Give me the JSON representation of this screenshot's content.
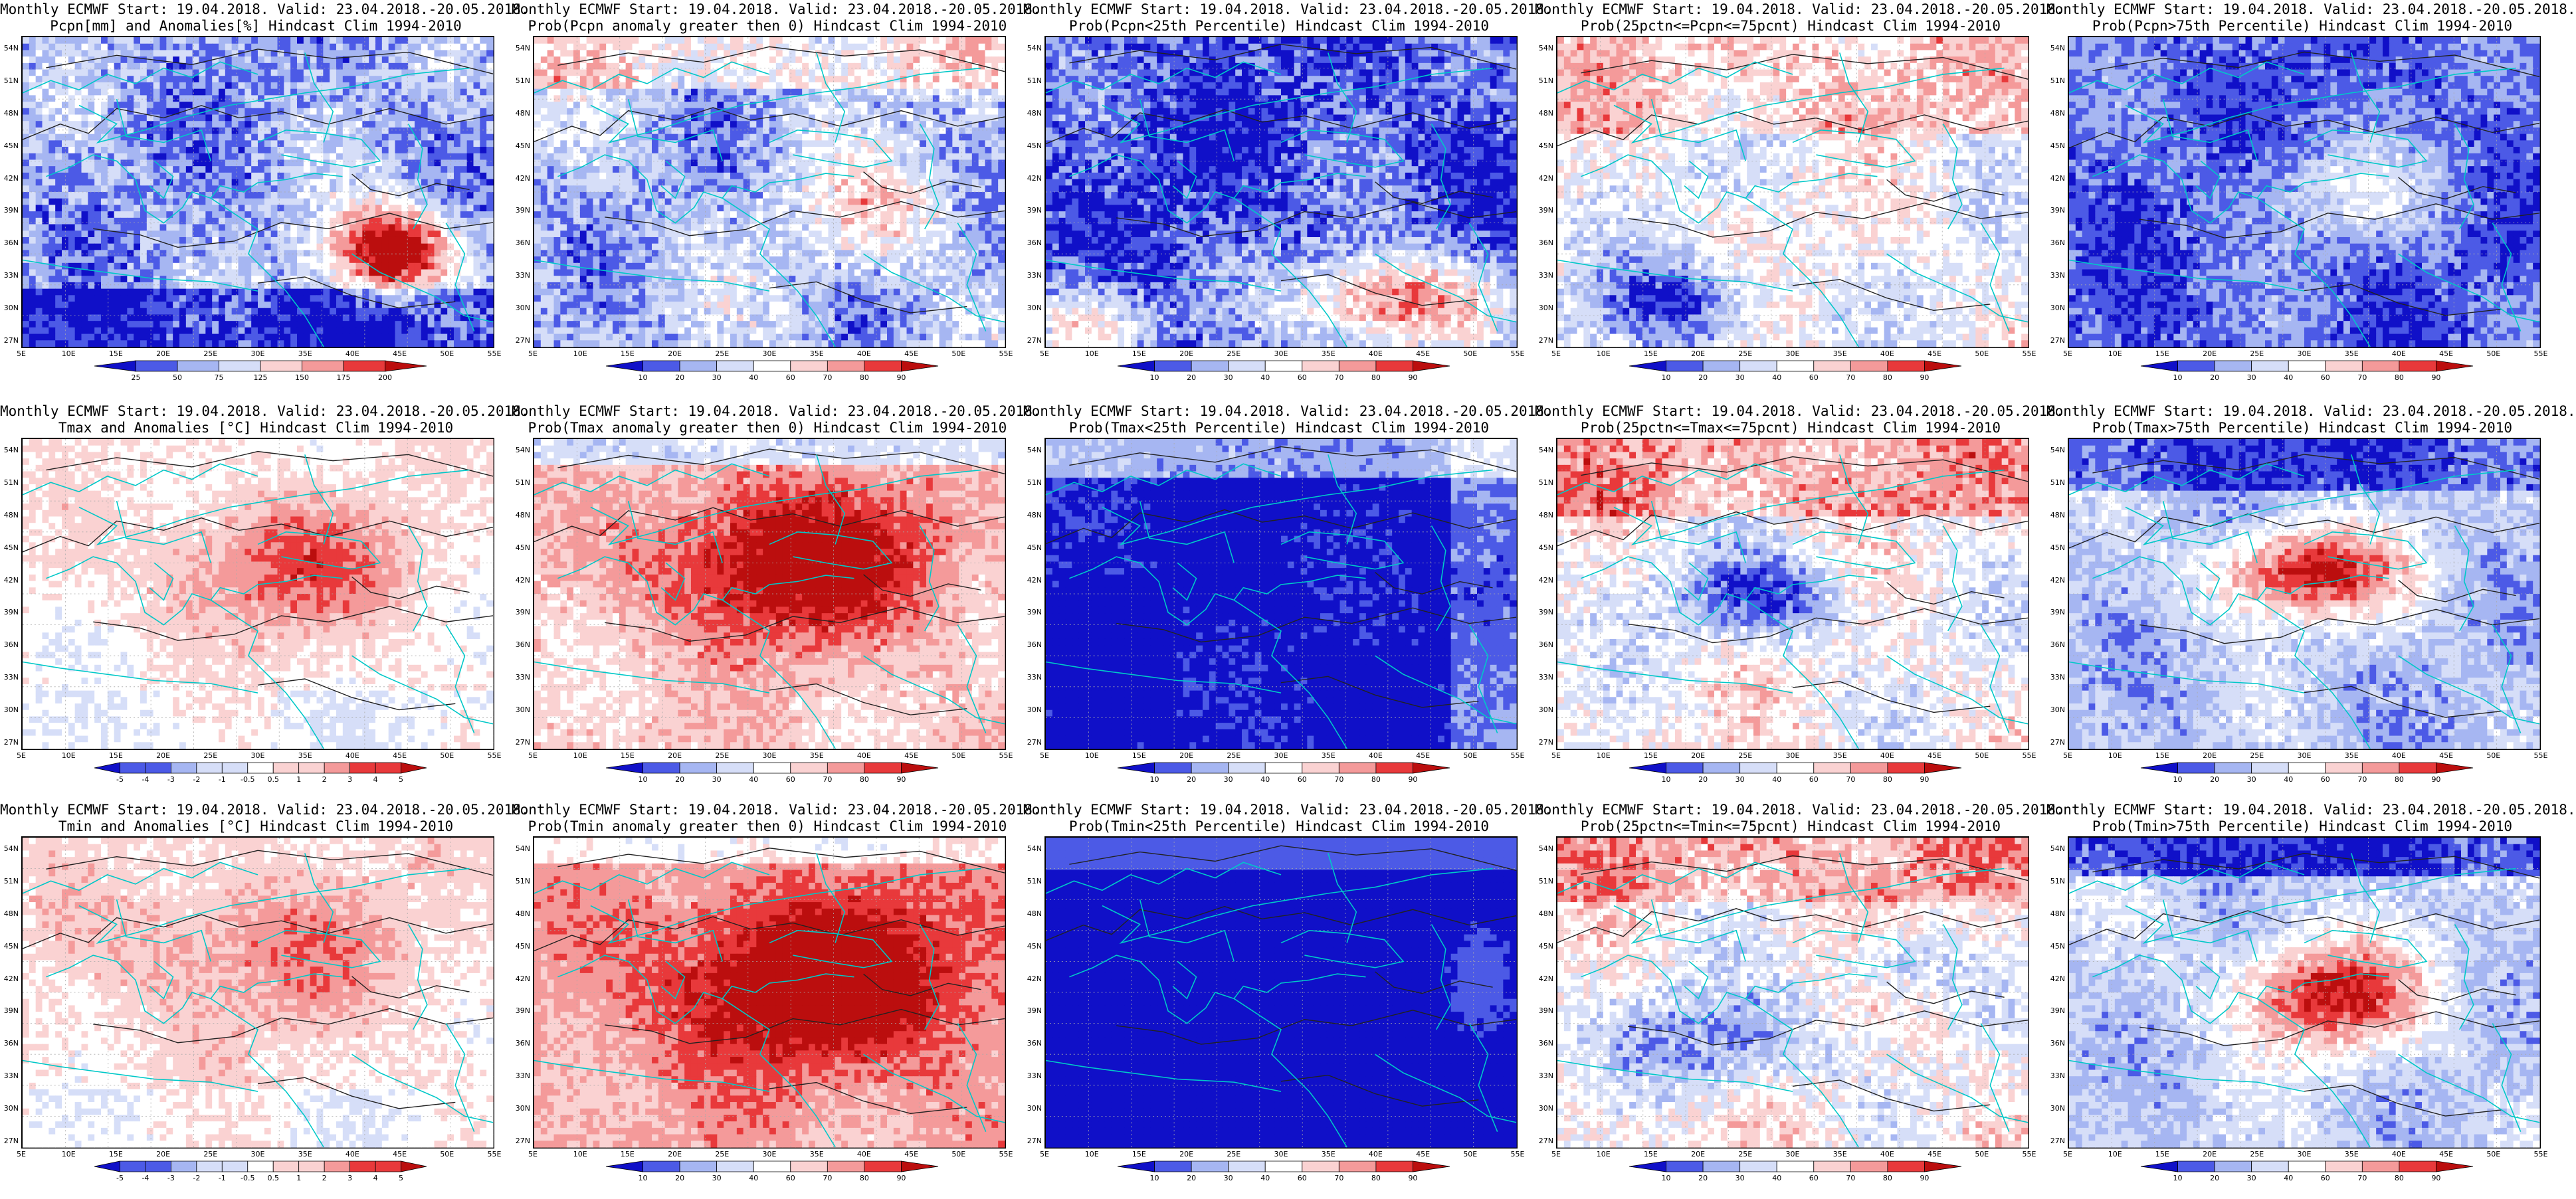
{
  "common": {
    "lat_labels": [
      "54N",
      "51N",
      "48N",
      "45N",
      "42N",
      "39N",
      "36N",
      "33N",
      "30N",
      "27N"
    ],
    "lon_labels": [
      "5E",
      "10E",
      "15E",
      "20E",
      "25E",
      "30E",
      "35E",
      "40E",
      "45E",
      "50E",
      "55E"
    ]
  },
  "colors": {
    "deep_blue": "#1010c8",
    "mid_blue": "#4c5ae6",
    "light_blue": "#a6b6f2",
    "pale_blue": "#d6def8",
    "white": "#ffffff",
    "pale_red": "#fad2d2",
    "light_red": "#f49a9a",
    "mid_red": "#e8393b",
    "deep_red": "#bb0e0e",
    "coast": "#00c8c8",
    "contour": "#222222"
  },
  "colorbars": {
    "anom_pcp": [
      "25",
      "50",
      "75",
      "125",
      "150",
      "175",
      "200"
    ],
    "anom_t": [
      "-5",
      "-4",
      "-3",
      "-2",
      "-1",
      "-0.5",
      "0.5",
      "1",
      "2",
      "3",
      "4",
      "5"
    ],
    "prob": [
      "10",
      "20",
      "30",
      "40",
      "60",
      "70",
      "80",
      "90"
    ]
  },
  "panels": [
    {
      "line1": "Monthly ECMWF Start: 19.04.2018. Valid: 23.04.2018.-20.05.2018.",
      "line2": "Pcpn[mm] and Anomalies[%] Hindcast Clim 1994-2010",
      "field": "pcp_anom",
      "colorbar": "anom_pcp"
    },
    {
      "line1": "Monthly ECMWF Start: 19.04.2018. Valid: 23.04.2018.-20.05.2018.",
      "line2": "Prob(Pcpn anomaly greater then 0) Hindcast Clim 1994-2010",
      "field": "pcp_gt0",
      "colorbar": "prob"
    },
    {
      "line1": "Monthly ECMWF Start: 19.04.2018. Valid: 23.04.2018.-20.05.2018.",
      "line2": "Prob(Pcpn<25th Percentile) Hindcast Clim 1994-2010",
      "field": "pcp_lt25",
      "colorbar": "prob"
    },
    {
      "line1": "Monthly ECMWF Start: 19.04.2018. Valid: 23.04.2018.-20.05.2018.",
      "line2": "Prob(25pctn<=Pcpn<=75pcnt) Hindcast Clim 1994-2010",
      "field": "pcp_mid",
      "colorbar": "prob"
    },
    {
      "line1": "Monthly ECMWF Start: 19.04.2018. Valid: 23.04.2018.-20.05.2018.",
      "line2": "Prob(Pcpn>75th Percentile) Hindcast Clim 1994-2010",
      "field": "pcp_gt75",
      "colorbar": "prob"
    },
    {
      "line1": "Monthly ECMWF Start: 19.04.2018. Valid: 23.04.2018.-20.05.2018.",
      "line2": "Tmax and Anomalies [°C] Hindcast Clim 1994-2010",
      "field": "tmax_anom",
      "colorbar": "anom_t"
    },
    {
      "line1": "Monthly ECMWF Start: 19.04.2018. Valid: 23.04.2018.-20.05.2018.",
      "line2": "Prob(Tmax anomaly greater then 0) Hindcast Clim 1994-2010",
      "field": "tmax_gt0",
      "colorbar": "prob"
    },
    {
      "line1": "Monthly ECMWF Start: 19.04.2018. Valid: 23.04.2018.-20.05.2018.",
      "line2": "Prob(Tmax<25th Percentile) Hindcast Clim 1994-2010",
      "field": "tmax_lt25",
      "colorbar": "prob"
    },
    {
      "line1": "Monthly ECMWF Start: 19.04.2018. Valid: 23.04.2018.-20.05.2018.",
      "line2": "Prob(25pctn<=Tmax<=75pcnt) Hindcast Clim 1994-2010",
      "field": "tmax_mid",
      "colorbar": "prob"
    },
    {
      "line1": "Monthly ECMWF Start: 19.04.2018. Valid: 23.04.2018.-20.05.2018.",
      "line2": "Prob(Tmax>75th Percentile) Hindcast Clim 1994-2010",
      "field": "tmax_gt75",
      "colorbar": "prob"
    },
    {
      "line1": "Monthly ECMWF Start: 19.04.2018. Valid: 23.04.2018.-20.05.2018.",
      "line2": "Tmin and Anomalies [°C] Hindcast Clim 1994-2010",
      "field": "tmin_anom",
      "colorbar": "anom_t"
    },
    {
      "line1": "Monthly ECMWF Start: 19.04.2018. Valid: 23.04.2018.-20.05.2018.",
      "line2": "Prob(Tmin anomaly greater then 0) Hindcast Clim 1994-2010",
      "field": "tmin_gt0",
      "colorbar": "prob"
    },
    {
      "line1": "Monthly ECMWF Start: 19.04.2018. Valid: 23.04.2018.-20.05.2018.",
      "line2": "Prob(Tmin<25th Percentile) Hindcast Clim 1994-2010",
      "field": "tmin_lt25",
      "colorbar": "prob"
    },
    {
      "line1": "Monthly ECMWF Start: 19.04.2018. Valid: 23.04.2018.-20.05.2018.",
      "line2": "Prob(25pctn<=Tmin<=75pcnt) Hindcast Clim 1994-2010",
      "field": "tmin_mid",
      "colorbar": "prob"
    },
    {
      "line1": "Monthly ECMWF Start: 19.04.2018. Valid: 23.04.2018.-20.05.2018.",
      "line2": "Prob(Tmin>75th Percentile) Hindcast Clim 1994-2010",
      "field": "tmin_gt75",
      "colorbar": "prob"
    }
  ]
}
